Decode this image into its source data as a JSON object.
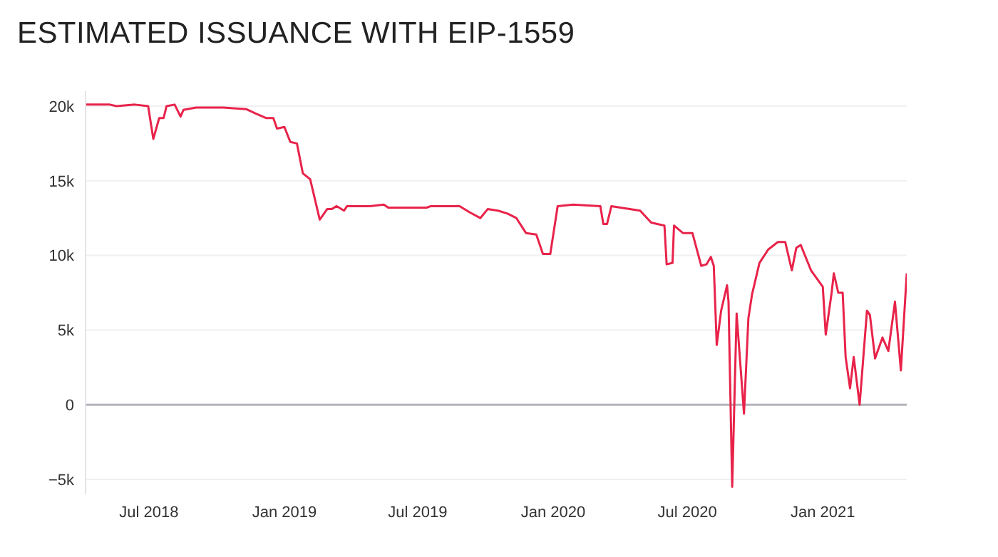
{
  "chart_data": {
    "type": "line",
    "title": "ESTIMATED ISSUANCE WITH EIP-1559",
    "x": [
      "2018-04-06",
      "2018-05-09",
      "2018-05-18",
      "2018-06-12",
      "2018-06-30",
      "2018-07-07",
      "2018-07-15",
      "2018-07-21",
      "2018-07-25",
      "2018-08-05",
      "2018-08-13",
      "2018-08-17",
      "2018-09-03",
      "2018-10-10",
      "2018-11-10",
      "2018-11-23",
      "2018-12-07",
      "2018-12-17",
      "2018-12-22",
      "2019-01-01",
      "2019-01-09",
      "2019-01-18",
      "2019-01-26",
      "2019-02-05",
      "2019-02-18",
      "2019-02-28",
      "2019-03-06",
      "2019-03-13",
      "2019-03-23",
      "2019-03-27",
      "2019-04-27",
      "2019-05-16",
      "2019-05-22",
      "2019-07-13",
      "2019-07-19",
      "2019-08-27",
      "2019-09-09",
      "2019-09-24",
      "2019-10-04",
      "2019-10-18",
      "2019-10-31",
      "2019-11-12",
      "2019-11-25",
      "2019-12-09",
      "2019-12-18",
      "2019-12-28",
      "2020-01-07",
      "2020-01-28",
      "2020-03-05",
      "2020-03-09",
      "2020-03-14",
      "2020-03-20",
      "2020-04-28",
      "2020-05-13",
      "2020-05-31",
      "2020-06-03",
      "2020-06-11",
      "2020-06-13",
      "2020-06-25",
      "2020-07-08",
      "2020-07-20",
      "2020-07-27",
      "2020-08-02",
      "2020-08-06",
      "2020-08-10",
      "2020-08-16",
      "2020-08-24",
      "2020-08-26",
      "2020-08-31",
      "2020-09-06",
      "2020-09-16",
      "2020-09-22",
      "2020-09-27",
      "2020-10-07",
      "2020-10-19",
      "2020-11-01",
      "2020-11-11",
      "2020-11-20",
      "2020-11-26",
      "2020-12-02",
      "2020-12-16",
      "2021-01-01",
      "2021-01-05",
      "2021-01-13",
      "2021-01-16",
      "2021-01-22",
      "2021-01-28",
      "2021-02-01",
      "2021-02-07",
      "2021-02-12",
      "2021-02-20",
      "2021-03-02",
      "2021-03-06",
      "2021-03-13",
      "2021-03-23",
      "2021-03-31",
      "2021-04-09",
      "2021-04-17",
      "2021-04-25"
    ],
    "series": [
      {
        "color": "#e8234a",
        "values": [
          20100,
          20100,
          20000,
          20100,
          20000,
          17800,
          19200,
          19200,
          20000,
          20100,
          19300,
          19750,
          19900,
          19900,
          19800,
          19500,
          19200,
          19200,
          18500,
          18600,
          17600,
          17500,
          15500,
          15100,
          12400,
          13100,
          13100,
          13300,
          13000,
          13300,
          13300,
          13400,
          13200,
          13200,
          13300,
          13300,
          12900,
          12500,
          13100,
          13000,
          12800,
          12500,
          11500,
          11400,
          10100,
          10100,
          13300,
          13400,
          13300,
          12100,
          12100,
          13300,
          13000,
          12200,
          12000,
          9400,
          9500,
          12000,
          11500,
          11500,
          9300,
          9400,
          9900,
          9300,
          4000,
          6300,
          8000,
          6900,
          -5500,
          6100,
          -600,
          5800,
          7400,
          9500,
          10400,
          10900,
          10900,
          9000,
          10500,
          10700,
          9000,
          7900,
          4700,
          7500,
          8800,
          7500,
          7500,
          3200,
          1100,
          3200,
          0,
          6300,
          6000,
          3100,
          4500,
          3600,
          6900,
          2300,
          8800
        ]
      }
    ],
    "xlim": [
      "2018-04-06",
      "2021-04-25"
    ],
    "xticks": [
      {
        "value": "2018-07-01",
        "label": "Jul 2018"
      },
      {
        "value": "2019-01-01",
        "label": "Jan 2019"
      },
      {
        "value": "2019-07-01",
        "label": "Jul 2019"
      },
      {
        "value": "2020-01-01",
        "label": "Jan 2020"
      },
      {
        "value": "2020-07-01",
        "label": "Jul 2020"
      },
      {
        "value": "2021-01-01",
        "label": "Jan 2021"
      }
    ],
    "ylim": [
      -6000,
      21000
    ],
    "yticks": [
      {
        "value": -5000,
        "label": "−5k"
      },
      {
        "value": 0,
        "label": "0"
      },
      {
        "value": 5000,
        "label": "5k"
      },
      {
        "value": 10000,
        "label": "10k"
      },
      {
        "value": 15000,
        "label": "15k"
      },
      {
        "value": 20000,
        "label": "20k"
      }
    ],
    "grid": "y",
    "ref_lines": [
      {
        "axis": "y",
        "value": 0,
        "color": "#b4b4bc"
      }
    ],
    "marker": "none",
    "line_style": "solid"
  }
}
